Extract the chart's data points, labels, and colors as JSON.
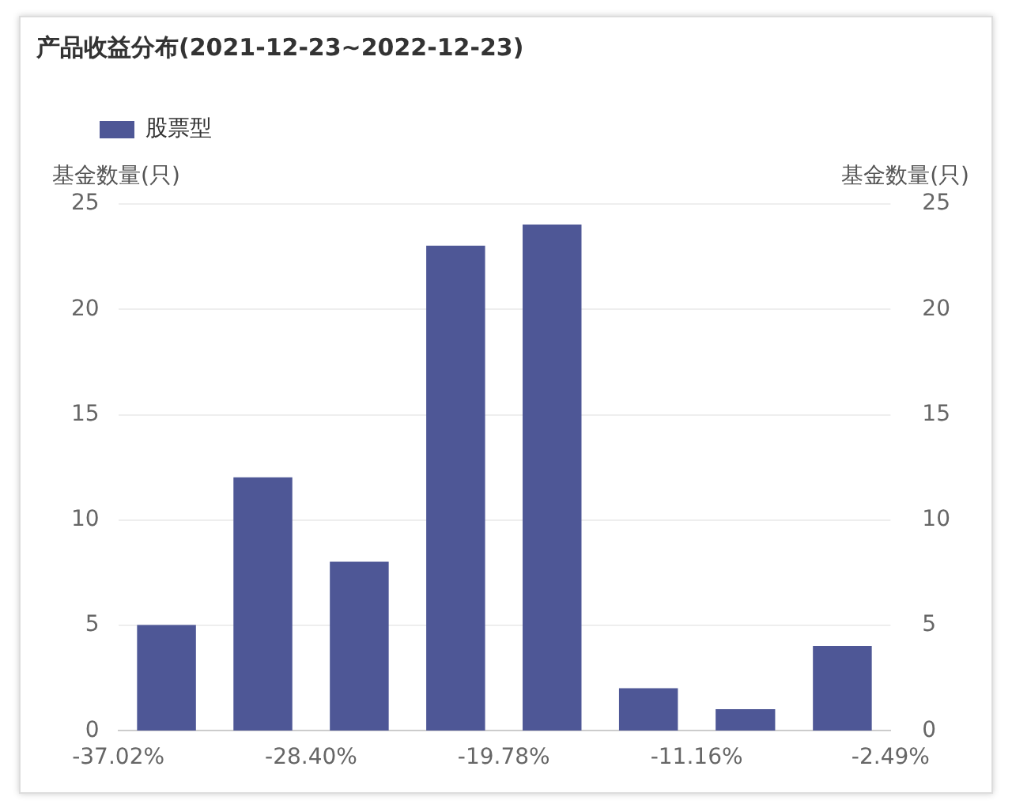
{
  "chart_data": {
    "type": "histogram",
    "title": "产品收益分布(2021-12-23~2022-12-23)",
    "bins": [
      -37.02,
      -32.71,
      -28.4,
      -24.09,
      -19.78,
      -15.47,
      -11.16,
      -6.8,
      -2.49
    ],
    "series": [
      {
        "name": "股票型",
        "color": "#4e5796",
        "values": [
          5,
          12,
          8,
          23,
          24,
          2,
          1,
          4
        ]
      }
    ],
    "xlim": [
      -37.02,
      -2.49
    ],
    "xticks": [
      {
        "value": -37.02,
        "label": "-37.02%"
      },
      {
        "value": -28.4,
        "label": "-28.40%"
      },
      {
        "value": -19.78,
        "label": "-19.78%"
      },
      {
        "value": -11.16,
        "label": "-11.16%"
      },
      {
        "value": -2.49,
        "label": "-2.49%"
      }
    ],
    "ylabel": "基金数量(只)",
    "ylim": [
      0,
      25
    ],
    "yticks": [
      0,
      5,
      10,
      15,
      20,
      25
    ],
    "y2label": "基金数量(只)",
    "y2lim": [
      0,
      25
    ],
    "y2ticks": [
      0,
      5,
      10,
      15,
      20,
      25
    ],
    "grid": "y",
    "legend": "top left"
  }
}
